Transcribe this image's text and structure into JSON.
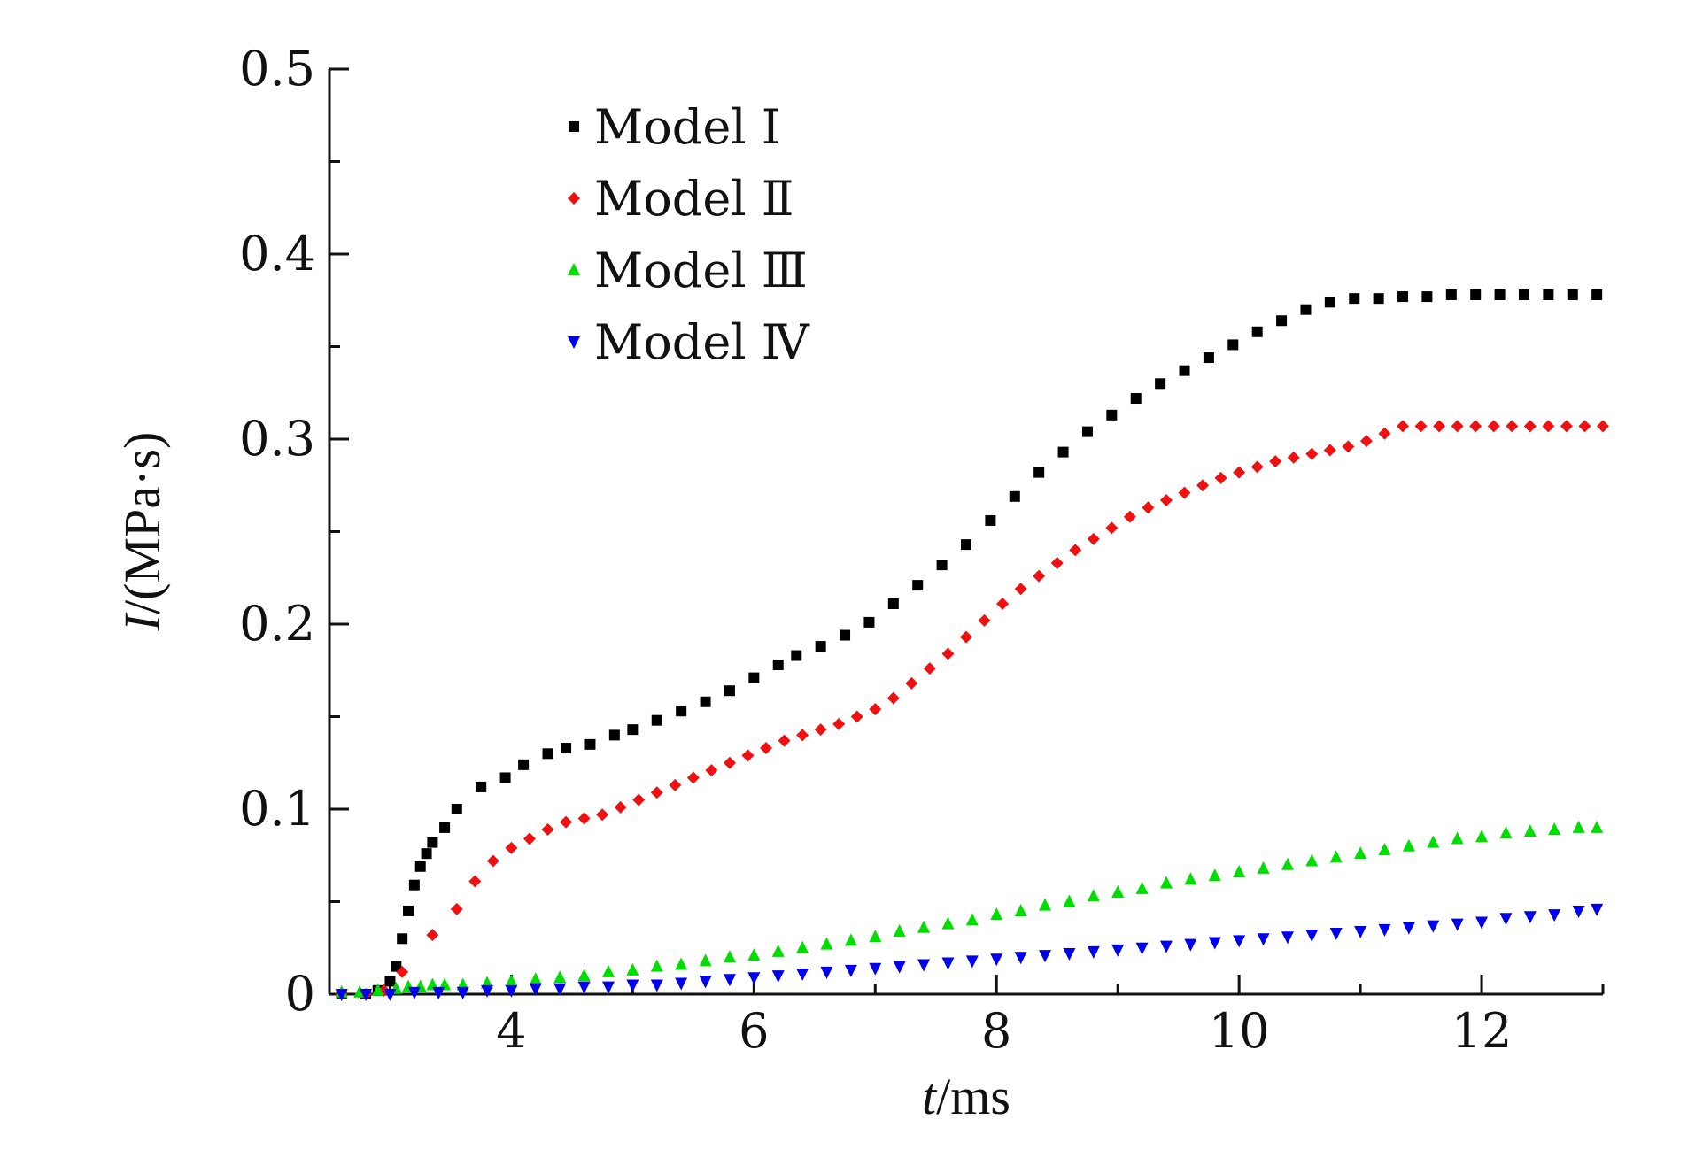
{
  "chart_data": {
    "type": "scatter",
    "xlabel": "t/ms",
    "xlabel_italic": "t",
    "xlabel_rest": "/ms",
    "ylabel": "I/(MPa·s)",
    "ylabel_italic": "I",
    "ylabel_rest": "/(MPa·s)",
    "xlim": [
      2.5,
      13.0
    ],
    "ylim": [
      0,
      0.5
    ],
    "x_ticks": [
      4,
      6,
      8,
      10,
      12
    ],
    "x_tick_labels": [
      "4",
      "6",
      "8",
      "10",
      "12"
    ],
    "y_ticks": [
      0,
      0.1,
      0.2,
      0.3,
      0.4,
      0.5
    ],
    "y_tick_labels": [
      "0",
      "0.1",
      "0.2",
      "0.3",
      "0.4",
      "0.5"
    ],
    "grid": false,
    "legend_position": "top-left",
    "series": [
      {
        "name": "Model Ⅰ",
        "marker": "square",
        "color": "#000000",
        "points": [
          [
            2.6,
            0.0
          ],
          [
            2.8,
            0.0
          ],
          [
            2.9,
            0.002
          ],
          [
            3.0,
            0.007
          ],
          [
            3.05,
            0.015
          ],
          [
            3.1,
            0.03
          ],
          [
            3.15,
            0.045
          ],
          [
            3.2,
            0.059
          ],
          [
            3.25,
            0.069
          ],
          [
            3.3,
            0.076
          ],
          [
            3.35,
            0.082
          ],
          [
            3.45,
            0.09
          ],
          [
            3.55,
            0.1
          ],
          [
            3.75,
            0.112
          ],
          [
            3.95,
            0.117
          ],
          [
            4.1,
            0.124
          ],
          [
            4.3,
            0.13
          ],
          [
            4.45,
            0.133
          ],
          [
            4.65,
            0.135
          ],
          [
            4.85,
            0.14
          ],
          [
            5.0,
            0.143
          ],
          [
            5.2,
            0.148
          ],
          [
            5.4,
            0.153
          ],
          [
            5.6,
            0.158
          ],
          [
            5.8,
            0.164
          ],
          [
            6.0,
            0.171
          ],
          [
            6.2,
            0.178
          ],
          [
            6.35,
            0.183
          ],
          [
            6.55,
            0.188
          ],
          [
            6.75,
            0.194
          ],
          [
            6.95,
            0.201
          ],
          [
            7.15,
            0.211
          ],
          [
            7.35,
            0.221
          ],
          [
            7.55,
            0.232
          ],
          [
            7.75,
            0.243
          ],
          [
            7.95,
            0.256
          ],
          [
            8.15,
            0.269
          ],
          [
            8.35,
            0.282
          ],
          [
            8.55,
            0.293
          ],
          [
            8.75,
            0.304
          ],
          [
            8.95,
            0.313
          ],
          [
            9.15,
            0.322
          ],
          [
            9.35,
            0.33
          ],
          [
            9.55,
            0.337
          ],
          [
            9.75,
            0.344
          ],
          [
            9.95,
            0.351
          ],
          [
            10.15,
            0.358
          ],
          [
            10.35,
            0.364
          ],
          [
            10.55,
            0.37
          ],
          [
            10.75,
            0.374
          ],
          [
            10.95,
            0.376
          ],
          [
            11.15,
            0.376
          ],
          [
            11.35,
            0.377
          ],
          [
            11.55,
            0.377
          ],
          [
            11.75,
            0.378
          ],
          [
            11.95,
            0.378
          ],
          [
            12.15,
            0.378
          ],
          [
            12.35,
            0.378
          ],
          [
            12.55,
            0.378
          ],
          [
            12.75,
            0.378
          ],
          [
            12.95,
            0.378
          ]
        ]
      },
      {
        "name": "Model Ⅱ",
        "marker": "diamond",
        "color": "#ee1111",
        "points": [
          [
            2.6,
            0.0
          ],
          [
            2.8,
            0.0
          ],
          [
            2.95,
            0.002
          ],
          [
            3.1,
            0.012
          ],
          [
            3.35,
            0.032
          ],
          [
            3.55,
            0.046
          ],
          [
            3.7,
            0.061
          ],
          [
            3.85,
            0.072
          ],
          [
            4.0,
            0.079
          ],
          [
            4.15,
            0.084
          ],
          [
            4.3,
            0.089
          ],
          [
            4.45,
            0.093
          ],
          [
            4.6,
            0.095
          ],
          [
            4.75,
            0.097
          ],
          [
            4.9,
            0.101
          ],
          [
            5.05,
            0.105
          ],
          [
            5.2,
            0.109
          ],
          [
            5.35,
            0.113
          ],
          [
            5.5,
            0.117
          ],
          [
            5.65,
            0.121
          ],
          [
            5.8,
            0.125
          ],
          [
            5.95,
            0.129
          ],
          [
            6.1,
            0.133
          ],
          [
            6.25,
            0.137
          ],
          [
            6.4,
            0.14
          ],
          [
            6.55,
            0.143
          ],
          [
            6.7,
            0.146
          ],
          [
            6.85,
            0.15
          ],
          [
            7.0,
            0.154
          ],
          [
            7.15,
            0.16
          ],
          [
            7.3,
            0.168
          ],
          [
            7.45,
            0.176
          ],
          [
            7.6,
            0.184
          ],
          [
            7.75,
            0.193
          ],
          [
            7.9,
            0.202
          ],
          [
            8.05,
            0.211
          ],
          [
            8.2,
            0.219
          ],
          [
            8.35,
            0.226
          ],
          [
            8.5,
            0.233
          ],
          [
            8.65,
            0.24
          ],
          [
            8.8,
            0.246
          ],
          [
            8.95,
            0.252
          ],
          [
            9.1,
            0.258
          ],
          [
            9.25,
            0.263
          ],
          [
            9.4,
            0.267
          ],
          [
            9.55,
            0.271
          ],
          [
            9.7,
            0.275
          ],
          [
            9.85,
            0.279
          ],
          [
            10.0,
            0.282
          ],
          [
            10.15,
            0.285
          ],
          [
            10.3,
            0.288
          ],
          [
            10.45,
            0.29
          ],
          [
            10.6,
            0.292
          ],
          [
            10.75,
            0.294
          ],
          [
            10.9,
            0.296
          ],
          [
            11.05,
            0.299
          ],
          [
            11.2,
            0.303
          ],
          [
            11.35,
            0.307
          ],
          [
            11.5,
            0.307
          ],
          [
            11.65,
            0.307
          ],
          [
            11.8,
            0.307
          ],
          [
            11.95,
            0.307
          ],
          [
            12.1,
            0.307
          ],
          [
            12.25,
            0.307
          ],
          [
            12.4,
            0.307
          ],
          [
            12.55,
            0.307
          ],
          [
            12.7,
            0.307
          ],
          [
            12.85,
            0.307
          ],
          [
            13.0,
            0.307
          ]
        ]
      },
      {
        "name": "Model Ⅲ",
        "marker": "triangle-up",
        "color": "#00dd00",
        "points": [
          [
            2.6,
            0.001
          ],
          [
            2.75,
            0.001
          ],
          [
            2.9,
            0.002
          ],
          [
            3.05,
            0.003
          ],
          [
            3.15,
            0.004
          ],
          [
            3.25,
            0.004
          ],
          [
            3.35,
            0.005
          ],
          [
            3.45,
            0.005
          ],
          [
            3.6,
            0.005
          ],
          [
            3.8,
            0.006
          ],
          [
            4.0,
            0.007
          ],
          [
            4.2,
            0.008
          ],
          [
            4.4,
            0.009
          ],
          [
            4.6,
            0.01
          ],
          [
            4.8,
            0.012
          ],
          [
            5.0,
            0.013
          ],
          [
            5.2,
            0.015
          ],
          [
            5.4,
            0.016
          ],
          [
            5.6,
            0.018
          ],
          [
            5.8,
            0.02
          ],
          [
            6.0,
            0.021
          ],
          [
            6.2,
            0.023
          ],
          [
            6.4,
            0.025
          ],
          [
            6.6,
            0.027
          ],
          [
            6.8,
            0.029
          ],
          [
            7.0,
            0.031
          ],
          [
            7.2,
            0.034
          ],
          [
            7.4,
            0.036
          ],
          [
            7.6,
            0.038
          ],
          [
            7.8,
            0.04
          ],
          [
            8.0,
            0.043
          ],
          [
            8.2,
            0.045
          ],
          [
            8.4,
            0.048
          ],
          [
            8.6,
            0.05
          ],
          [
            8.8,
            0.053
          ],
          [
            9.0,
            0.055
          ],
          [
            9.2,
            0.057
          ],
          [
            9.4,
            0.06
          ],
          [
            9.6,
            0.062
          ],
          [
            9.8,
            0.064
          ],
          [
            10.0,
            0.066
          ],
          [
            10.2,
            0.068
          ],
          [
            10.4,
            0.07
          ],
          [
            10.6,
            0.072
          ],
          [
            10.8,
            0.074
          ],
          [
            11.0,
            0.076
          ],
          [
            11.2,
            0.078
          ],
          [
            11.4,
            0.08
          ],
          [
            11.6,
            0.082
          ],
          [
            11.8,
            0.084
          ],
          [
            12.0,
            0.085
          ],
          [
            12.2,
            0.087
          ],
          [
            12.4,
            0.088
          ],
          [
            12.6,
            0.089
          ],
          [
            12.8,
            0.09
          ],
          [
            12.95,
            0.09
          ]
        ]
      },
      {
        "name": "Model Ⅳ",
        "marker": "triangle-down",
        "color": "#0000ee",
        "points": [
          [
            2.6,
            0.0
          ],
          [
            2.8,
            0.0
          ],
          [
            3.0,
            0.0
          ],
          [
            3.2,
            0.001
          ],
          [
            3.4,
            0.001
          ],
          [
            3.6,
            0.001
          ],
          [
            3.8,
            0.002
          ],
          [
            4.0,
            0.002
          ],
          [
            4.2,
            0.003
          ],
          [
            4.4,
            0.003
          ],
          [
            4.6,
            0.004
          ],
          [
            4.8,
            0.004
          ],
          [
            5.0,
            0.005
          ],
          [
            5.2,
            0.005
          ],
          [
            5.4,
            0.006
          ],
          [
            5.6,
            0.007
          ],
          [
            5.8,
            0.008
          ],
          [
            6.0,
            0.009
          ],
          [
            6.2,
            0.01
          ],
          [
            6.4,
            0.011
          ],
          [
            6.6,
            0.012
          ],
          [
            6.8,
            0.013
          ],
          [
            7.0,
            0.014
          ],
          [
            7.2,
            0.015
          ],
          [
            7.4,
            0.016
          ],
          [
            7.6,
            0.017
          ],
          [
            7.8,
            0.018
          ],
          [
            8.0,
            0.019
          ],
          [
            8.2,
            0.02
          ],
          [
            8.4,
            0.021
          ],
          [
            8.6,
            0.022
          ],
          [
            8.8,
            0.023
          ],
          [
            9.0,
            0.024
          ],
          [
            9.2,
            0.025
          ],
          [
            9.4,
            0.026
          ],
          [
            9.6,
            0.027
          ],
          [
            9.8,
            0.028
          ],
          [
            10.0,
            0.029
          ],
          [
            10.2,
            0.03
          ],
          [
            10.4,
            0.031
          ],
          [
            10.6,
            0.032
          ],
          [
            10.8,
            0.033
          ],
          [
            11.0,
            0.034
          ],
          [
            11.2,
            0.035
          ],
          [
            11.4,
            0.036
          ],
          [
            11.6,
            0.037
          ],
          [
            11.8,
            0.038
          ],
          [
            12.0,
            0.039
          ],
          [
            12.2,
            0.041
          ],
          [
            12.4,
            0.042
          ],
          [
            12.6,
            0.043
          ],
          [
            12.8,
            0.045
          ],
          [
            12.95,
            0.046
          ]
        ]
      }
    ]
  }
}
